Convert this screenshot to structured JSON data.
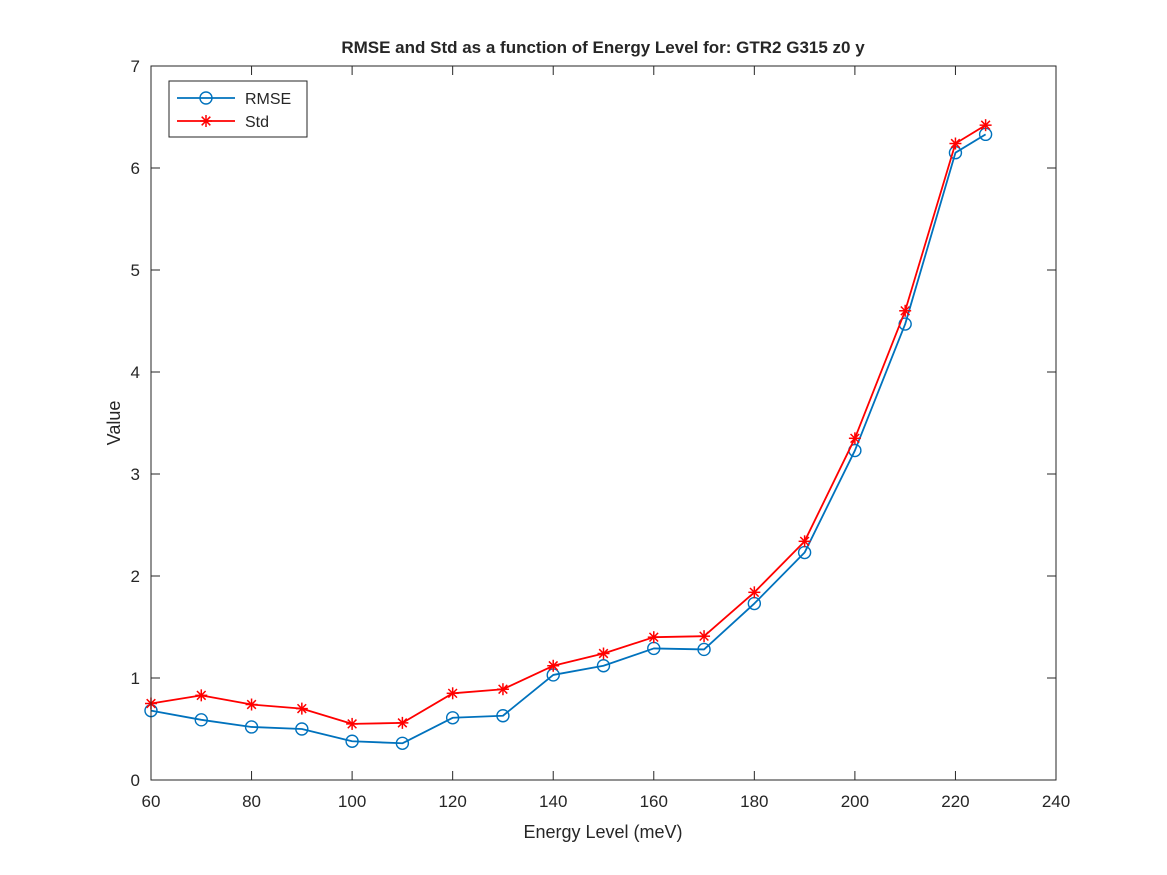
{
  "chart_data": {
    "type": "line",
    "title": "RMSE and Std as a function of Energy Level for: GTR2 G315 z0 y",
    "xlabel": "Energy Level (meV)",
    "ylabel": "Value",
    "xlim": [
      60,
      240
    ],
    "ylim": [
      0,
      7
    ],
    "xticks": [
      60,
      80,
      100,
      120,
      140,
      160,
      180,
      200,
      220,
      240
    ],
    "yticks": [
      0,
      1,
      2,
      3,
      4,
      5,
      6,
      7
    ],
    "grid": false,
    "legend_position": "top-left",
    "x": [
      60,
      70,
      80,
      90,
      100,
      110,
      120,
      130,
      140,
      150,
      160,
      170,
      180,
      190,
      200,
      210,
      220,
      226
    ],
    "series": [
      {
        "name": "RMSE",
        "color": "#0072BD",
        "marker": "circle",
        "values": [
          0.68,
          0.59,
          0.52,
          0.5,
          0.38,
          0.36,
          0.61,
          0.63,
          1.03,
          1.12,
          1.29,
          1.28,
          1.73,
          2.23,
          3.23,
          4.47,
          6.15,
          6.33
        ]
      },
      {
        "name": "Std",
        "color": "#FF0000",
        "marker": "asterisk",
        "values": [
          0.75,
          0.83,
          0.74,
          0.7,
          0.55,
          0.56,
          0.85,
          0.89,
          1.12,
          1.24,
          1.4,
          1.41,
          1.84,
          2.34,
          3.35,
          4.6,
          6.24,
          6.42
        ]
      }
    ]
  }
}
